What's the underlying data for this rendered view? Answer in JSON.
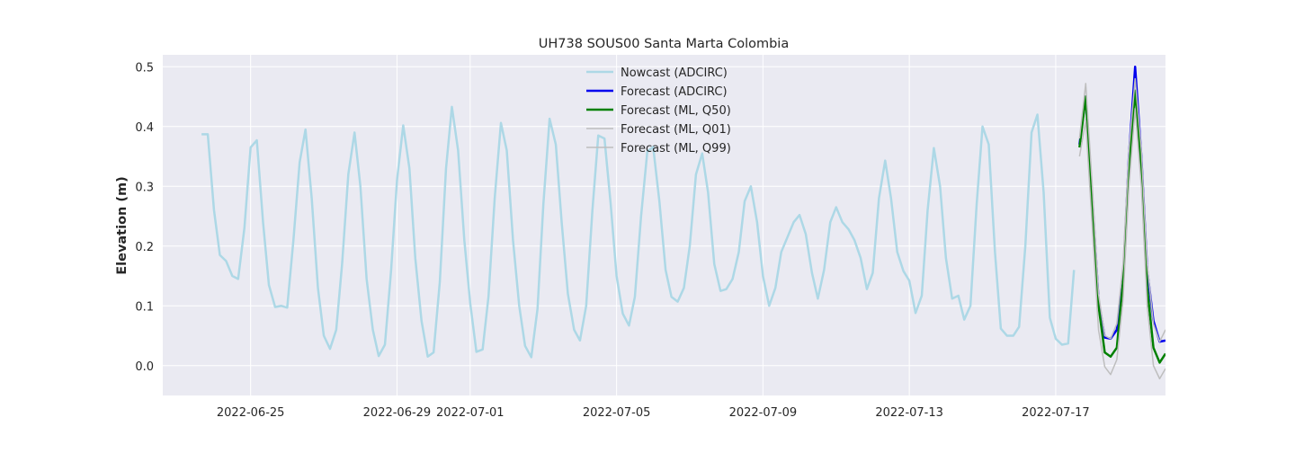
{
  "chart_data": {
    "type": "line",
    "title": "UH738 SOUS00 Santa Marta Colombia",
    "xlabel": "",
    "ylabel": "Elevation (m)",
    "xlim_days": [
      -2.4,
      25.0
    ],
    "ylim": [
      -0.05,
      0.52
    ],
    "grid": true,
    "legend_position": "top-center",
    "x_ticks": [
      {
        "day": 0,
        "label": "2022-06-25"
      },
      {
        "day": 4,
        "label": "2022-06-29"
      },
      {
        "day": 6,
        "label": "2022-07-01"
      },
      {
        "day": 10,
        "label": "2022-07-05"
      },
      {
        "day": 14,
        "label": "2022-07-09"
      },
      {
        "day": 18,
        "label": "2022-07-13"
      },
      {
        "day": 22,
        "label": "2022-07-17"
      }
    ],
    "y_ticks": [
      {
        "value": 0.0,
        "label": "0.0"
      },
      {
        "value": 0.1,
        "label": "0.1"
      },
      {
        "value": 0.2,
        "label": "0.2"
      },
      {
        "value": 0.3,
        "label": "0.3"
      },
      {
        "value": 0.4,
        "label": "0.4"
      },
      {
        "value": 0.5,
        "label": "0.5"
      }
    ],
    "x_note": "x values are days since 2022-06-25 00:00",
    "series": [
      {
        "name": "Nowcast (ADCIRC)",
        "color": "#add8e6",
        "width": 2.5,
        "points": [
          [
            -1.34,
            0.387
          ],
          [
            -1.17,
            0.387
          ],
          [
            -1.0,
            0.26
          ],
          [
            -0.84,
            0.185
          ],
          [
            -0.67,
            0.175
          ],
          [
            -0.5,
            0.15
          ],
          [
            -0.34,
            0.145
          ],
          [
            -0.17,
            0.23
          ],
          [
            0.0,
            0.365
          ],
          [
            0.17,
            0.377
          ],
          [
            0.34,
            0.24
          ],
          [
            0.5,
            0.135
          ],
          [
            0.67,
            0.098
          ],
          [
            0.84,
            0.1
          ],
          [
            1.0,
            0.097
          ],
          [
            1.17,
            0.21
          ],
          [
            1.34,
            0.34
          ],
          [
            1.5,
            0.395
          ],
          [
            1.67,
            0.28
          ],
          [
            1.84,
            0.13
          ],
          [
            2.0,
            0.05
          ],
          [
            2.17,
            0.028
          ],
          [
            2.34,
            0.06
          ],
          [
            2.5,
            0.17
          ],
          [
            2.67,
            0.32
          ],
          [
            2.84,
            0.39
          ],
          [
            3.0,
            0.3
          ],
          [
            3.17,
            0.145
          ],
          [
            3.34,
            0.06
          ],
          [
            3.5,
            0.016
          ],
          [
            3.67,
            0.035
          ],
          [
            3.84,
            0.16
          ],
          [
            4.0,
            0.31
          ],
          [
            4.17,
            0.402
          ],
          [
            4.34,
            0.33
          ],
          [
            4.5,
            0.18
          ],
          [
            4.67,
            0.075
          ],
          [
            4.84,
            0.015
          ],
          [
            5.0,
            0.022
          ],
          [
            5.17,
            0.14
          ],
          [
            5.34,
            0.33
          ],
          [
            5.5,
            0.433
          ],
          [
            5.67,
            0.36
          ],
          [
            5.84,
            0.21
          ],
          [
            6.0,
            0.105
          ],
          [
            6.17,
            0.023
          ],
          [
            6.34,
            0.027
          ],
          [
            6.5,
            0.115
          ],
          [
            6.67,
            0.28
          ],
          [
            6.84,
            0.406
          ],
          [
            7.0,
            0.36
          ],
          [
            7.17,
            0.21
          ],
          [
            7.34,
            0.1
          ],
          [
            7.5,
            0.033
          ],
          [
            7.67,
            0.014
          ],
          [
            7.84,
            0.095
          ],
          [
            8.0,
            0.27
          ],
          [
            8.17,
            0.413
          ],
          [
            8.34,
            0.37
          ],
          [
            8.5,
            0.24
          ],
          [
            8.67,
            0.12
          ],
          [
            8.84,
            0.06
          ],
          [
            9.0,
            0.042
          ],
          [
            9.17,
            0.1
          ],
          [
            9.34,
            0.26
          ],
          [
            9.5,
            0.385
          ],
          [
            9.67,
            0.38
          ],
          [
            9.84,
            0.27
          ],
          [
            10.0,
            0.15
          ],
          [
            10.17,
            0.087
          ],
          [
            10.34,
            0.067
          ],
          [
            10.5,
            0.115
          ],
          [
            10.67,
            0.25
          ],
          [
            10.84,
            0.358
          ],
          [
            11.0,
            0.366
          ],
          [
            11.17,
            0.275
          ],
          [
            11.34,
            0.16
          ],
          [
            11.5,
            0.115
          ],
          [
            11.67,
            0.107
          ],
          [
            11.84,
            0.13
          ],
          [
            12.0,
            0.2
          ],
          [
            12.17,
            0.32
          ],
          [
            12.34,
            0.355
          ],
          [
            12.5,
            0.29
          ],
          [
            12.67,
            0.17
          ],
          [
            12.84,
            0.125
          ],
          [
            13.0,
            0.128
          ],
          [
            13.17,
            0.145
          ],
          [
            13.34,
            0.19
          ],
          [
            13.5,
            0.275
          ],
          [
            13.67,
            0.3
          ],
          [
            13.84,
            0.24
          ],
          [
            14.0,
            0.15
          ],
          [
            14.17,
            0.1
          ],
          [
            14.34,
            0.13
          ],
          [
            14.5,
            0.19
          ],
          [
            14.67,
            0.215
          ],
          [
            14.84,
            0.24
          ],
          [
            15.0,
            0.252
          ],
          [
            15.17,
            0.22
          ],
          [
            15.34,
            0.155
          ],
          [
            15.5,
            0.112
          ],
          [
            15.67,
            0.16
          ],
          [
            15.84,
            0.24
          ],
          [
            16.0,
            0.265
          ],
          [
            16.17,
            0.24
          ],
          [
            16.34,
            0.228
          ],
          [
            16.5,
            0.21
          ],
          [
            16.67,
            0.18
          ],
          [
            16.84,
            0.128
          ],
          [
            17.0,
            0.155
          ],
          [
            17.17,
            0.28
          ],
          [
            17.34,
            0.343
          ],
          [
            17.5,
            0.28
          ],
          [
            17.67,
            0.19
          ],
          [
            17.84,
            0.158
          ],
          [
            18.0,
            0.142
          ],
          [
            18.17,
            0.088
          ],
          [
            18.34,
            0.117
          ],
          [
            18.5,
            0.26
          ],
          [
            18.67,
            0.364
          ],
          [
            18.84,
            0.3
          ],
          [
            19.0,
            0.18
          ],
          [
            19.17,
            0.112
          ],
          [
            19.34,
            0.117
          ],
          [
            19.5,
            0.077
          ],
          [
            19.67,
            0.1
          ],
          [
            19.84,
            0.27
          ],
          [
            20.0,
            0.4
          ],
          [
            20.17,
            0.37
          ],
          [
            20.34,
            0.19
          ],
          [
            20.5,
            0.062
          ],
          [
            20.67,
            0.05
          ],
          [
            20.84,
            0.05
          ],
          [
            21.0,
            0.065
          ],
          [
            21.17,
            0.2
          ],
          [
            21.34,
            0.39
          ],
          [
            21.5,
            0.42
          ],
          [
            21.67,
            0.29
          ],
          [
            21.84,
            0.08
          ],
          [
            22.0,
            0.045
          ],
          [
            22.17,
            0.035
          ],
          [
            22.34,
            0.037
          ],
          [
            22.5,
            0.16
          ]
        ]
      },
      {
        "name": "Forecast (ADCIRC)",
        "color": "#0000ee",
        "width": 2.5,
        "points": [
          [
            22.65,
            0.37
          ],
          [
            22.82,
            0.45
          ],
          [
            23.0,
            0.28
          ],
          [
            23.17,
            0.11
          ],
          [
            23.34,
            0.047
          ],
          [
            23.5,
            0.045
          ],
          [
            23.67,
            0.06
          ],
          [
            23.84,
            0.14
          ],
          [
            24.0,
            0.35
          ],
          [
            24.17,
            0.5
          ],
          [
            24.34,
            0.35
          ],
          [
            24.5,
            0.16
          ],
          [
            24.67,
            0.075
          ],
          [
            24.84,
            0.04
          ],
          [
            25.0,
            0.042
          ]
        ]
      },
      {
        "name": "Forecast (ML, Q50)",
        "color": "#008000",
        "width": 2.5,
        "points": [
          [
            22.65,
            0.365
          ],
          [
            22.82,
            0.45
          ],
          [
            23.0,
            0.27
          ],
          [
            23.17,
            0.1
          ],
          [
            23.34,
            0.022
          ],
          [
            23.5,
            0.015
          ],
          [
            23.67,
            0.03
          ],
          [
            23.84,
            0.14
          ],
          [
            24.0,
            0.33
          ],
          [
            24.17,
            0.46
          ],
          [
            24.34,
            0.33
          ],
          [
            24.5,
            0.13
          ],
          [
            24.67,
            0.03
          ],
          [
            24.84,
            0.005
          ],
          [
            25.0,
            0.02
          ]
        ]
      },
      {
        "name": "Forecast (ML, Q01)",
        "color": "#bebebe",
        "width": 1.5,
        "points": [
          [
            22.65,
            0.35
          ],
          [
            22.82,
            0.41
          ],
          [
            23.0,
            0.23
          ],
          [
            23.17,
            0.06
          ],
          [
            23.34,
            -0.002
          ],
          [
            23.5,
            -0.015
          ],
          [
            23.67,
            0.01
          ],
          [
            23.84,
            0.11
          ],
          [
            24.0,
            0.3
          ],
          [
            24.17,
            0.43
          ],
          [
            24.34,
            0.3
          ],
          [
            24.5,
            0.1
          ],
          [
            24.67,
            0.0
          ],
          [
            24.84,
            -0.022
          ],
          [
            25.0,
            -0.005
          ]
        ]
      },
      {
        "name": "Forecast (ML, Q99)",
        "color": "#bebebe",
        "width": 1.5,
        "points": [
          [
            22.65,
            0.38
          ],
          [
            22.82,
            0.472
          ],
          [
            23.0,
            0.3
          ],
          [
            23.17,
            0.12
          ],
          [
            23.34,
            0.05
          ],
          [
            23.5,
            0.045
          ],
          [
            23.67,
            0.07
          ],
          [
            23.84,
            0.17
          ],
          [
            24.0,
            0.36
          ],
          [
            24.17,
            0.48
          ],
          [
            24.34,
            0.36
          ],
          [
            24.5,
            0.17
          ],
          [
            24.67,
            0.07
          ],
          [
            24.84,
            0.04
          ],
          [
            25.0,
            0.06
          ]
        ]
      }
    ]
  }
}
